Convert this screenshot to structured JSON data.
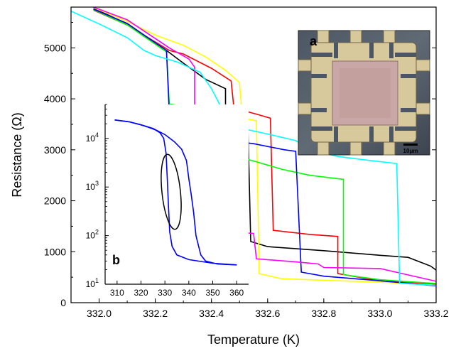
{
  "chart_data": [
    {
      "type": "line",
      "xlabel": "Temperature (K)",
      "ylabel": "Resistance (Ω)",
      "xlim": [
        331.9,
        333.2
      ],
      "ylim": [
        0,
        5800
      ],
      "x_ticks": [
        "332.0",
        "332.2",
        "332.4",
        "332.6",
        "332.8",
        "333.0",
        "333.2"
      ],
      "y_ticks": [
        "0",
        "1000",
        "2000",
        "3000",
        "4000",
        "5000"
      ],
      "series": [
        {
          "color": "#000000",
          "points": [
            [
              331.98,
              5780
            ],
            [
              332.1,
              5470
            ],
            [
              332.24,
              4950
            ],
            [
              332.3,
              4700
            ],
            [
              332.38,
              4380
            ],
            [
              332.45,
              4200
            ],
            [
              332.45,
              3550
            ],
            [
              332.5,
              3530
            ],
            [
              332.53,
              3420
            ],
            [
              332.54,
              1200
            ],
            [
              332.6,
              1100
            ],
            [
              332.8,
              1020
            ],
            [
              333.0,
              930
            ],
            [
              333.1,
              890
            ],
            [
              333.18,
              720
            ],
            [
              333.2,
              640
            ]
          ]
        },
        {
          "color": "#ff0000",
          "points": [
            [
              331.98,
              5740
            ],
            [
              332.1,
              5450
            ],
            [
              332.25,
              4950
            ],
            [
              332.3,
              4880
            ],
            [
              332.4,
              4600
            ],
            [
              332.47,
              4350
            ],
            [
              332.48,
              3820
            ],
            [
              332.56,
              3700
            ],
            [
              332.61,
              3620
            ],
            [
              332.62,
              1420
            ],
            [
              332.75,
              1340
            ],
            [
              332.85,
              1300
            ],
            [
              332.85,
              570
            ],
            [
              333.0,
              430
            ],
            [
              333.2,
              360
            ]
          ]
        },
        {
          "color": "#ffff00",
          "points": [
            [
              331.98,
              5790
            ],
            [
              332.1,
              5520
            ],
            [
              332.2,
              5250
            ],
            [
              332.3,
              5050
            ],
            [
              332.38,
              4820
            ],
            [
              332.45,
              4560
            ],
            [
              332.5,
              4320
            ],
            [
              332.51,
              3620
            ],
            [
              332.56,
              3570
            ],
            [
              332.57,
              570
            ],
            [
              332.65,
              470
            ],
            [
              332.8,
              440
            ],
            [
              333.0,
              405
            ],
            [
              333.2,
              345
            ]
          ]
        },
        {
          "color": "#00ff00",
          "points": [
            [
              331.98,
              5750
            ],
            [
              332.1,
              5450
            ],
            [
              332.24,
              4920
            ],
            [
              332.25,
              3900
            ],
            [
              332.33,
              3830
            ],
            [
              332.42,
              3520
            ],
            [
              332.47,
              3490
            ],
            [
              332.47,
              2900
            ],
            [
              332.55,
              2780
            ],
            [
              332.65,
              2620
            ],
            [
              332.75,
              2500
            ],
            [
              332.87,
              2420
            ],
            [
              332.87,
              550
            ],
            [
              333.0,
              450
            ],
            [
              333.2,
              375
            ]
          ]
        },
        {
          "color": "#0000ff",
          "points": [
            [
              331.98,
              5760
            ],
            [
              332.1,
              5480
            ],
            [
              332.24,
              4950
            ],
            [
              332.25,
              3700
            ],
            [
              332.33,
              3570
            ],
            [
              332.41,
              3480
            ],
            [
              332.46,
              3430
            ],
            [
              332.47,
              3170
            ],
            [
              332.55,
              3120
            ],
            [
              332.66,
              3000
            ],
            [
              332.7,
              2970
            ],
            [
              332.72,
              600
            ],
            [
              332.8,
              520
            ],
            [
              333.0,
              430
            ],
            [
              333.2,
              330
            ]
          ]
        },
        {
          "color": "#ff00ff",
          "points": [
            [
              331.98,
              5800
            ],
            [
              332.1,
              5550
            ],
            [
              332.25,
              5000
            ],
            [
              332.32,
              4780
            ],
            [
              332.34,
              4620
            ],
            [
              332.34,
              3320
            ],
            [
              332.35,
              3310
            ],
            [
              332.36,
              1420
            ],
            [
              332.45,
              1390
            ],
            [
              332.55,
              1360
            ],
            [
              332.56,
              860
            ],
            [
              332.7,
              800
            ],
            [
              332.78,
              760
            ],
            [
              332.8,
              690
            ],
            [
              333.0,
              670
            ],
            [
              333.2,
              420
            ]
          ]
        },
        {
          "color": "#00ffff",
          "points": [
            [
              331.9,
              5720
            ],
            [
              332.0,
              5470
            ],
            [
              332.1,
              5200
            ],
            [
              332.16,
              4950
            ],
            [
              332.2,
              4850
            ],
            [
              332.28,
              4720
            ],
            [
              332.36,
              4520
            ],
            [
              332.4,
              4200
            ],
            [
              332.45,
              3670
            ],
            [
              332.47,
              3510
            ],
            [
              332.5,
              3430
            ],
            [
              332.6,
              3310
            ],
            [
              332.7,
              3180
            ],
            [
              332.75,
              3000
            ],
            [
              332.85,
              2870
            ],
            [
              332.95,
              2800
            ],
            [
              333.06,
              2730
            ],
            [
              333.07,
              380
            ],
            [
              333.2,
              340
            ]
          ]
        }
      ]
    },
    {
      "type": "line",
      "xlim": [
        305,
        365
      ],
      "y_scale": "log",
      "ylim": [
        10,
        50000
      ],
      "x_ticks": [
        "310",
        "320",
        "330",
        "340",
        "350",
        "360"
      ],
      "y_ticks": [
        "10^1",
        "10^2",
        "10^3",
        "10^4"
      ],
      "series": [
        {
          "color": "#0000ff",
          "points": [
            [
              309,
              24000
            ],
            [
              315,
              22000
            ],
            [
              320,
              19000
            ],
            [
              325,
              16000
            ],
            [
              330,
              12000
            ],
            [
              334,
              8500
            ],
            [
              337,
              6000
            ],
            [
              339,
              3500
            ],
            [
              340,
              1500
            ],
            [
              341,
              700
            ],
            [
              342,
              300
            ],
            [
              343,
              100
            ],
            [
              345,
              40
            ],
            [
              347,
              30
            ],
            [
              352,
              26
            ],
            [
              360,
              25
            ]
          ]
        },
        {
          "color": "#0000ff",
          "points": [
            [
              309,
              24000
            ],
            [
              315,
              22000
            ],
            [
              320,
              19000
            ],
            [
              323,
              17000
            ],
            [
              326,
              15000
            ],
            [
              328,
              13000
            ],
            [
              329.5,
              10000
            ],
            [
              330.5,
              5000
            ],
            [
              331,
              1500
            ],
            [
              331.5,
              400
            ],
            [
              332,
              120
            ],
            [
              333,
              60
            ],
            [
              335,
              40
            ],
            [
              340,
              32
            ],
            [
              350,
              27
            ],
            [
              360,
              25
            ]
          ]
        }
      ],
      "annotation": "ellipse"
    }
  ],
  "panel_a": {
    "letter": "a",
    "scalebar_label": "10μm"
  },
  "panel_b": {
    "letter": "b"
  }
}
